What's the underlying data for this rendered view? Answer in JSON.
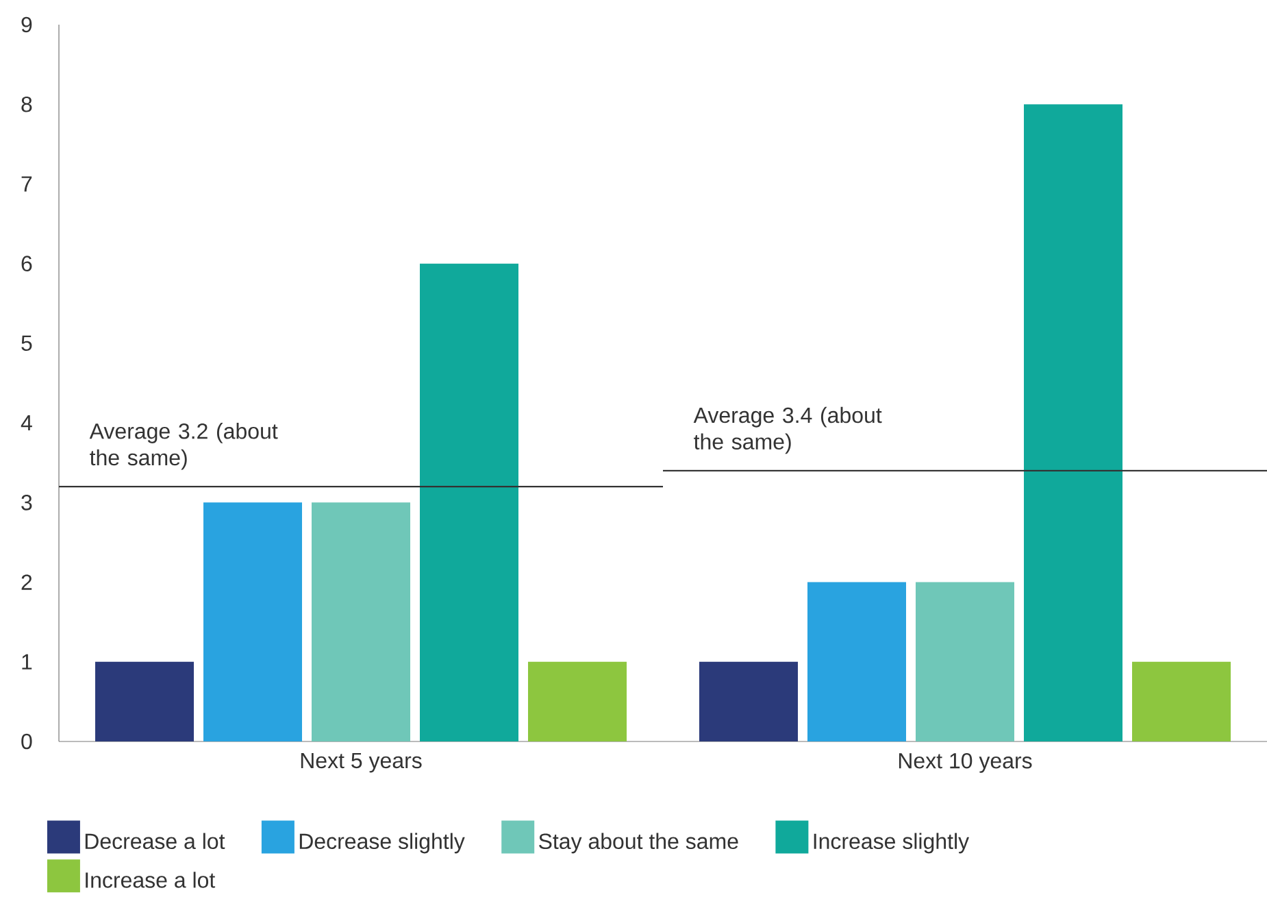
{
  "chart_data": {
    "type": "bar",
    "categories": [
      "Next 5 years",
      "Next 10 years"
    ],
    "series": [
      {
        "name": "Decrease a lot",
        "color": "#2b3a7a",
        "values": [
          1,
          1
        ]
      },
      {
        "name": "Decrease slightly",
        "color": "#29a3e0",
        "values": [
          3,
          2
        ]
      },
      {
        "name": "Stay about the same",
        "color": "#6fc7b8",
        "values": [
          3,
          2
        ]
      },
      {
        "name": "Increase slightly",
        "color": "#10a99b",
        "values": [
          6,
          8
        ]
      },
      {
        "name": "Increase a lot",
        "color": "#8dc63f",
        "values": [
          1,
          1
        ]
      }
    ],
    "ylim": [
      0,
      9
    ],
    "yticks": [
      0,
      1,
      2,
      3,
      4,
      5,
      6,
      7,
      8,
      9
    ],
    "grid": false,
    "legend": "bottom",
    "ref_lines": [
      {
        "axis": "y",
        "value": 3.2,
        "label": "Average 3.2 (about the same)",
        "color": "#333333"
      },
      {
        "axis": "y",
        "value": 3.4,
        "label": "Average 3.4 (about the same)",
        "color": "#333333"
      }
    ]
  }
}
